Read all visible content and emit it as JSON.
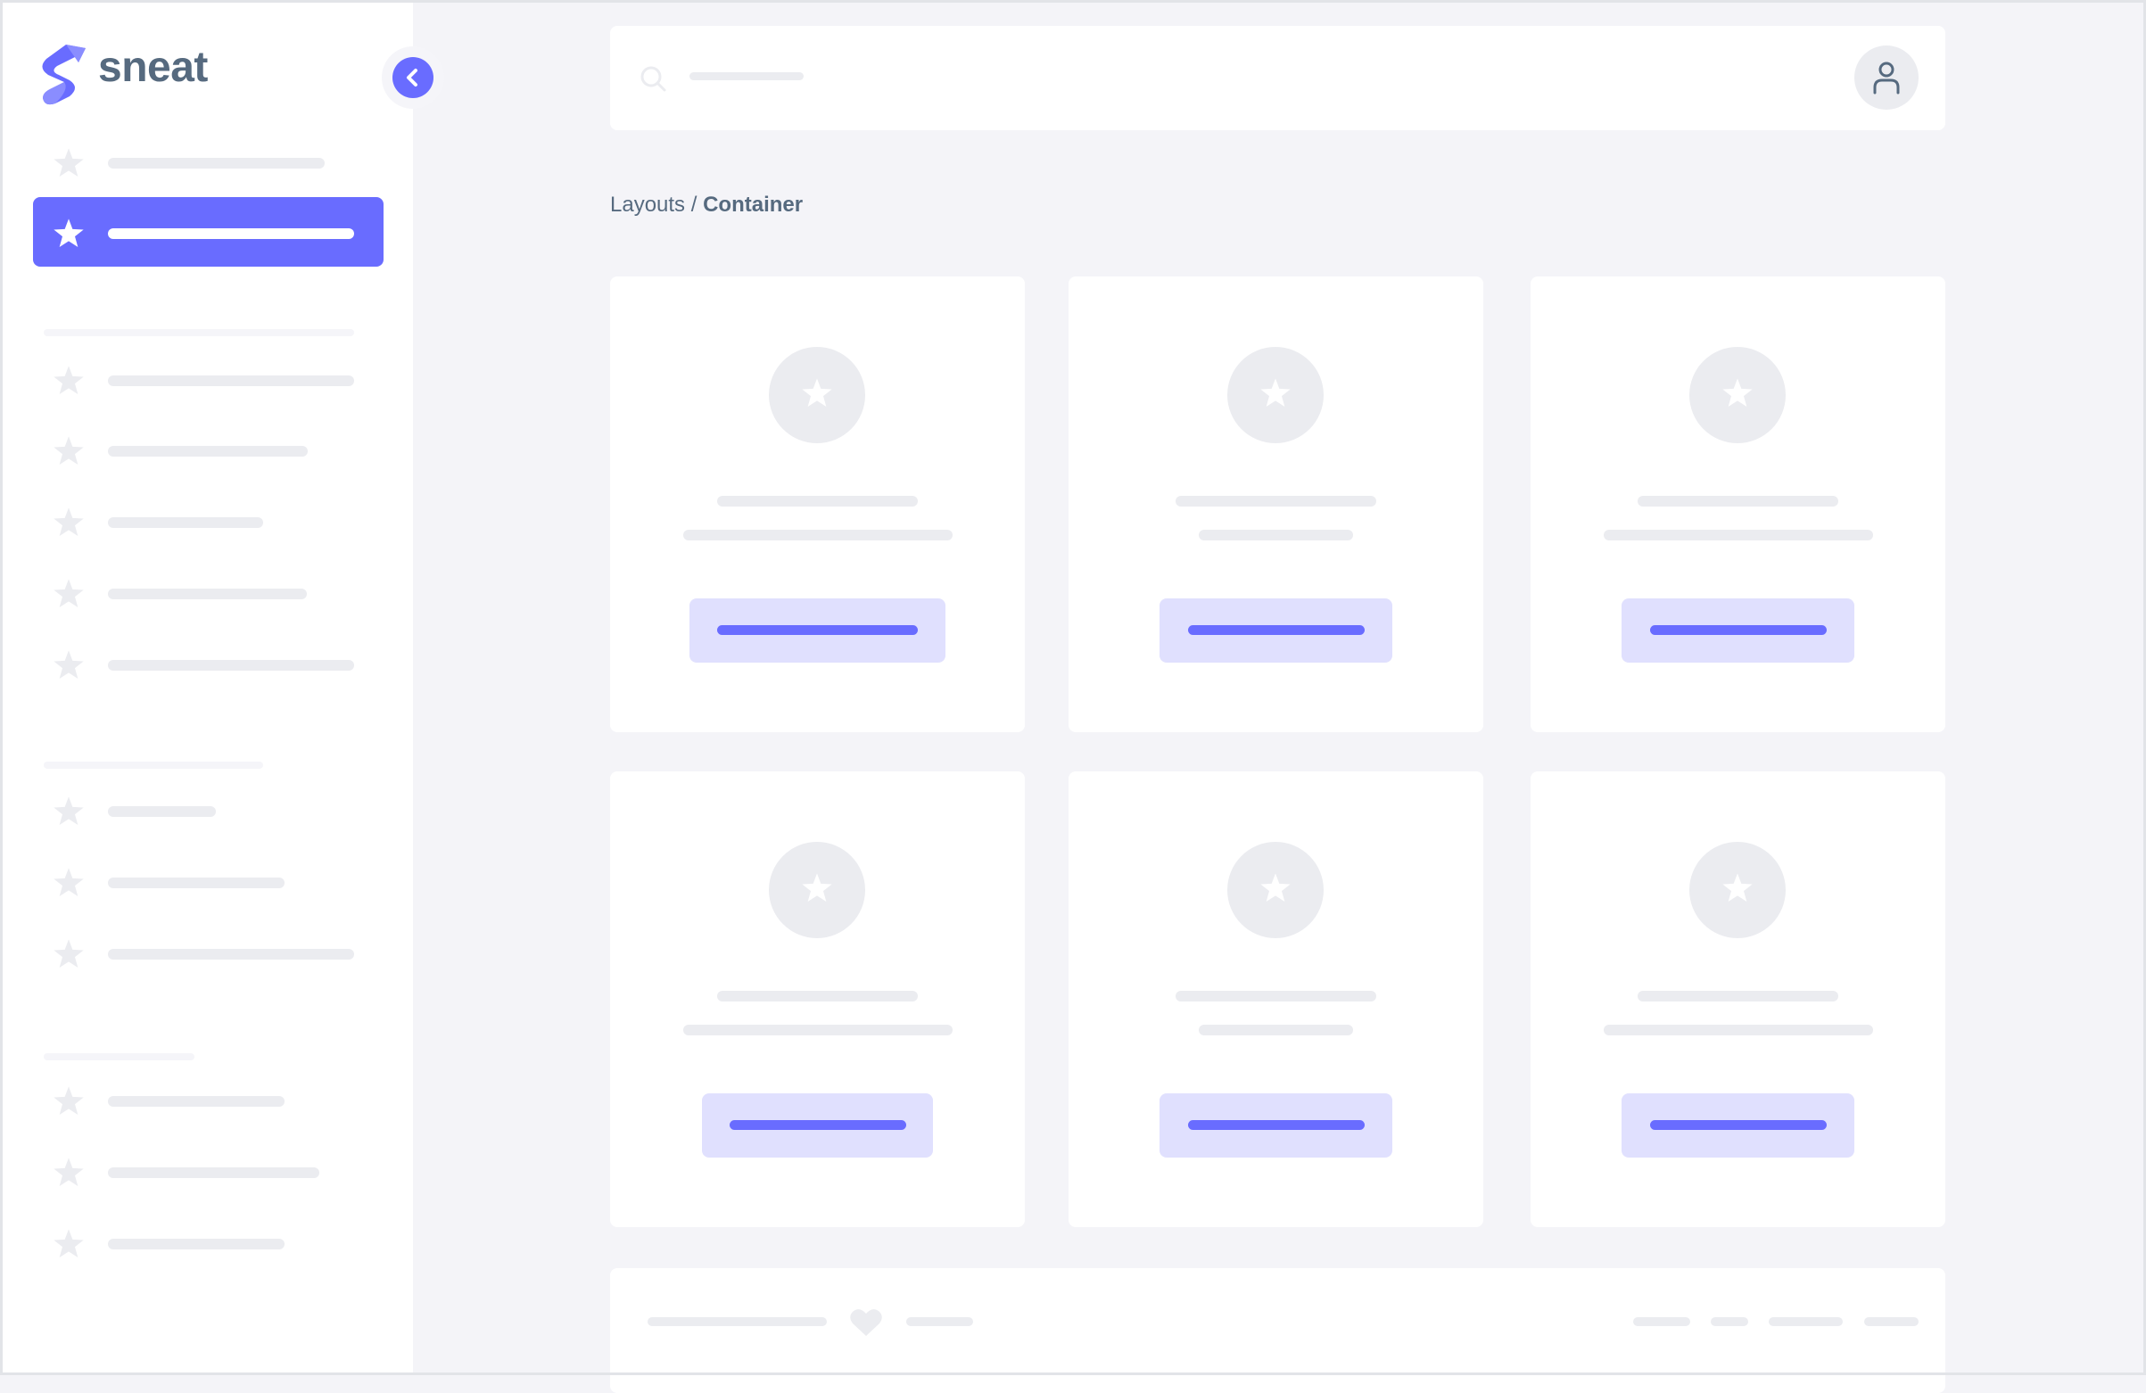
{
  "brand": {
    "name": "sneat",
    "color": "#696cff",
    "text_color": "#566a7f"
  },
  "sidebar": {
    "collapse_icon": "chevron-left-icon",
    "item_icon": "star-icon",
    "active_index": 1
  },
  "header": {
    "search_icon": "search-icon",
    "avatar_icon": "user-icon"
  },
  "breadcrumb": {
    "parent": "Layouts",
    "separator": " / ",
    "current": "Container"
  },
  "footer": {
    "icon": "heart-icon"
  }
}
